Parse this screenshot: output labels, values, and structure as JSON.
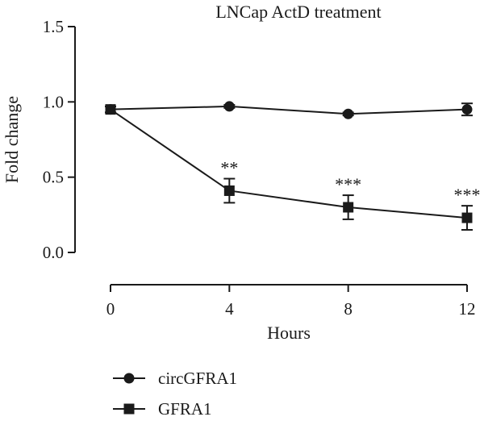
{
  "chart_data": {
    "type": "line",
    "title": "LNCap ActD treatment",
    "xlabel": "Hours",
    "ylabel": "Fold change",
    "x": [
      0,
      4,
      8,
      12
    ],
    "xticks": [
      "0",
      "4",
      "8",
      "12"
    ],
    "yticks": [
      "0.0",
      "0.5",
      "1.0",
      "1.5"
    ],
    "xlim": [
      0,
      12
    ],
    "ylim": [
      0,
      1.5
    ],
    "grid": false,
    "legend_position": "bottom-left",
    "series": [
      {
        "name": "circGFRA1",
        "marker": "circle",
        "values": [
          0.95,
          0.97,
          0.92,
          0.95
        ],
        "errors": [
          0.02,
          0.01,
          0.01,
          0.04
        ],
        "significance": [
          "",
          "",
          "",
          ""
        ]
      },
      {
        "name": "GFRA1",
        "marker": "square",
        "values": [
          0.95,
          0.41,
          0.3,
          0.23
        ],
        "errors": [
          0.02,
          0.08,
          0.08,
          0.08
        ],
        "significance": [
          "",
          "**",
          "***",
          "***"
        ]
      }
    ],
    "color": "#1a1a1a"
  }
}
